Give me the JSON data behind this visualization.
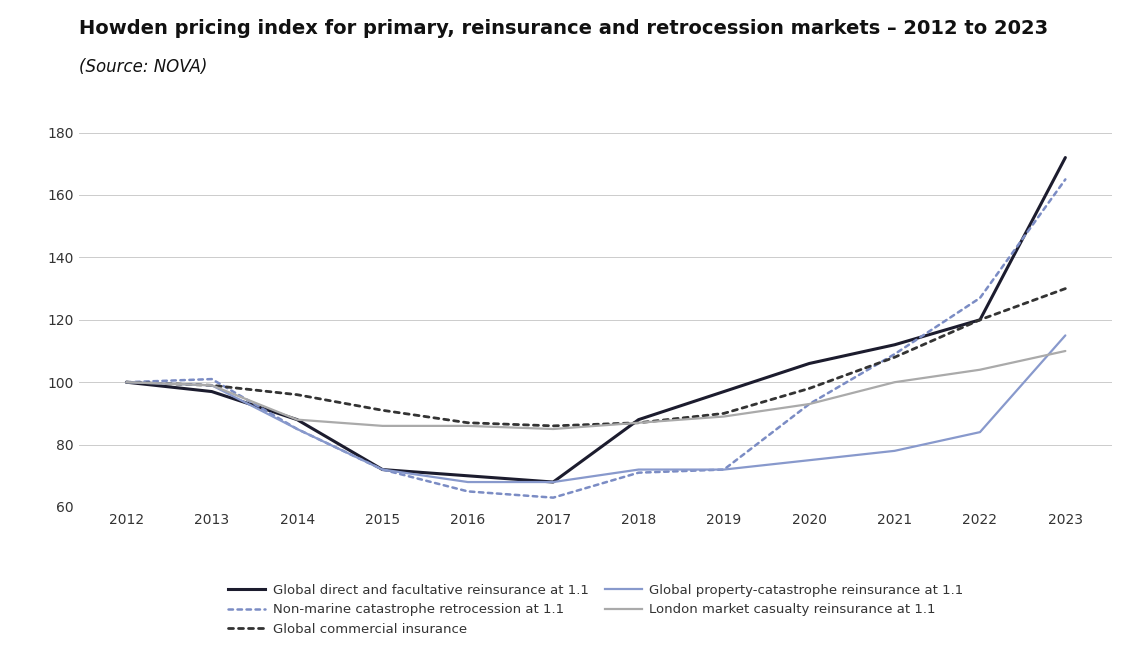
{
  "title_line1": "Howden pricing index for primary, reinsurance and retrocession markets – 2012 to 2023",
  "title_line2": "(Source: NOVA)",
  "years": [
    2012,
    2013,
    2014,
    2015,
    2016,
    2017,
    2018,
    2019,
    2020,
    2021,
    2022,
    2023
  ],
  "series": [
    {
      "key": "global_direct",
      "label": "Global direct and facultative reinsurance at 1.1",
      "color": "#1c1c2e",
      "linestyle": "solid",
      "linewidth": 2.2,
      "values": [
        100,
        97,
        88,
        72,
        70,
        68,
        88,
        97,
        106,
        112,
        120,
        172
      ]
    },
    {
      "key": "non_marine_cat",
      "label": "Non-marine catastrophe retrocession at 1.1",
      "color": "#7b8cc4",
      "linestyle": "dotted",
      "linewidth": 1.8,
      "values": [
        100,
        101,
        85,
        72,
        65,
        63,
        71,
        72,
        93,
        109,
        127,
        165
      ]
    },
    {
      "key": "global_commercial",
      "label": "Global commercial insurance",
      "color": "#333333",
      "linestyle": "dotted",
      "linewidth": 2.0,
      "values": [
        100,
        99,
        96,
        91,
        87,
        86,
        87,
        90,
        98,
        108,
        120,
        130
      ]
    },
    {
      "key": "global_property_cat",
      "label": "Global property-catastrophe reinsurance at 1.1",
      "color": "#8899cc",
      "linestyle": "solid",
      "linewidth": 1.6,
      "values": [
        100,
        99,
        85,
        72,
        68,
        68,
        72,
        72,
        75,
        78,
        84,
        115
      ]
    },
    {
      "key": "london_casualty",
      "label": "London market casualty reinsurance at 1.1",
      "color": "#aaaaaa",
      "linestyle": "solid",
      "linewidth": 1.6,
      "values": [
        100,
        99,
        88,
        86,
        86,
        85,
        87,
        89,
        93,
        100,
        104,
        110
      ]
    }
  ],
  "legend_order": [
    [
      "global_direct",
      "non_marine_cat"
    ],
    [
      "global_commercial",
      "global_property_cat"
    ],
    [
      "london_casualty"
    ]
  ],
  "ylim": [
    60,
    185
  ],
  "yticks": [
    60,
    80,
    100,
    120,
    140,
    160,
    180
  ],
  "background_color": "#ffffff",
  "grid_color": "#cccccc",
  "title_fontsize": 14,
  "subtitle_fontsize": 12,
  "tick_fontsize": 10,
  "legend_fontsize": 9.5
}
